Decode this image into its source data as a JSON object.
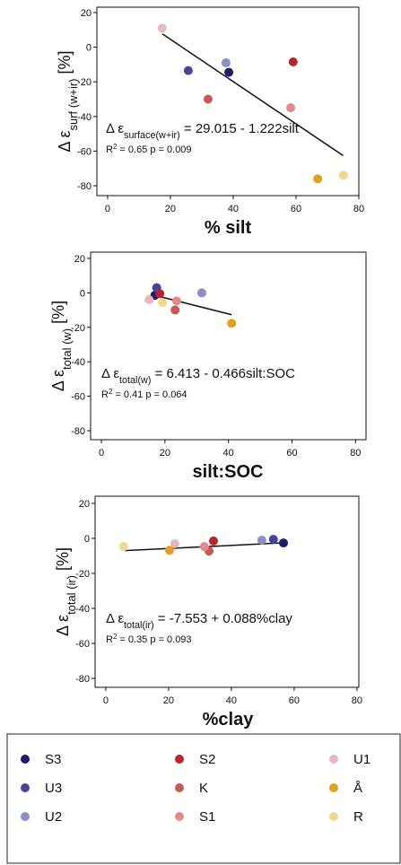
{
  "legend": [
    {
      "name": "S3",
      "color": "#1c1c6b"
    },
    {
      "name": "U3",
      "color": "#45459a"
    },
    {
      "name": "U2",
      "color": "#8f8fc6"
    },
    {
      "name": "S2",
      "color": "#b3282c"
    },
    {
      "name": "K",
      "color": "#c75858"
    },
    {
      "name": "S1",
      "color": "#e08a8a"
    },
    {
      "name": "U1",
      "color": "#e9b9b9"
    },
    {
      "name": "Å",
      "color": "#e0a21e"
    },
    {
      "name": "R",
      "color": "#f1d88f"
    }
  ],
  "chart_data": [
    {
      "type": "scatter",
      "ylabel": {
        "lead": "Δ ε",
        "sub": "surf (w+ir)",
        "tail": " [%]"
      },
      "xlabel": "% silt",
      "equation": {
        "lead": "Δ ε",
        "sub": "surface(w+ir)",
        "tail": " = 29.015 - 1.222silt"
      },
      "stats": {
        "lead": "R",
        "sup": "2",
        "tail": " = 0.65  p = 0.009"
      },
      "x": [
        38.6,
        25.7,
        37.7,
        59.1,
        32,
        58.3,
        17.4,
        66.9,
        75.1
      ],
      "y": [
        -14.5,
        -13.5,
        -9,
        -8.5,
        -30,
        -35,
        11,
        -76,
        -74
      ],
      "fit": {
        "x": [
          17.5,
          75
        ],
        "y": [
          7.6,
          -62.6
        ]
      },
      "xlim": [
        -3.4,
        80
      ],
      "ylim": [
        -85.7,
        23.1
      ],
      "xticks": [
        0,
        20,
        40,
        60,
        80
      ],
      "yticks": [
        -80,
        -60,
        -40,
        -20,
        0,
        20
      ]
    },
    {
      "type": "scatter",
      "ylabel": {
        "lead": "Δ ε",
        "sub": "total (w)",
        "tail": " [%]"
      },
      "xlabel": "silt:SOC",
      "equation": {
        "lead": "Δ ε",
        "sub": "total(w)",
        "tail": " = 6.413 - 0.466silt:SOC"
      },
      "stats": {
        "lead": "R",
        "sup": "2",
        "tail": " = 0.41  p = 0.064"
      },
      "x": [
        16.8,
        17.4,
        31.6,
        18.4,
        23.2,
        23.7,
        15,
        41,
        19.2
      ],
      "y": [
        -1.5,
        3,
        0,
        -0.5,
        -10,
        -4.7,
        -4,
        -17.7,
        -5.7
      ],
      "fit": {
        "x": [
          17,
          41
        ],
        "y": [
          -1.5,
          -12.7
        ]
      },
      "xlim": [
        -3.4,
        83.3
      ],
      "ylim": [
        -85.2,
        23.6
      ],
      "xticks": [
        0,
        20,
        40,
        60,
        80
      ],
      "yticks": [
        -80,
        -60,
        -40,
        -20,
        0,
        20
      ]
    },
    {
      "type": "scatter",
      "ylabel": {
        "lead": "Δ ε",
        "sub": "total (ir)",
        "tail": " [%]"
      },
      "xlabel": "%clay",
      "equation": {
        "lead": "Δ ε",
        "sub": "total(ir)",
        "tail": " = -7.553 + 0.088%clay"
      },
      "stats": {
        "lead": "R",
        "sup": "2",
        "tail": " = 0.35  p = 0.093"
      },
      "x": [
        56.6,
        53.4,
        49.7,
        34.3,
        32.9,
        31.4,
        22,
        20.3,
        5.7
      ],
      "y": [
        -2.6,
        -0.5,
        -1,
        -1.5,
        -7.3,
        -4.7,
        -3,
        -6.8,
        -4.7
      ],
      "fit": {
        "x": [
          6,
          57
        ],
        "y": [
          -7,
          -2.5
        ]
      },
      "xlim": [
        -3.4,
        80.6
      ],
      "ylim": [
        -85.1,
        24.1
      ],
      "xticks": [
        0,
        20,
        40,
        60,
        80
      ],
      "yticks": [
        -80,
        -60,
        -40,
        -20,
        0,
        20
      ]
    }
  ]
}
